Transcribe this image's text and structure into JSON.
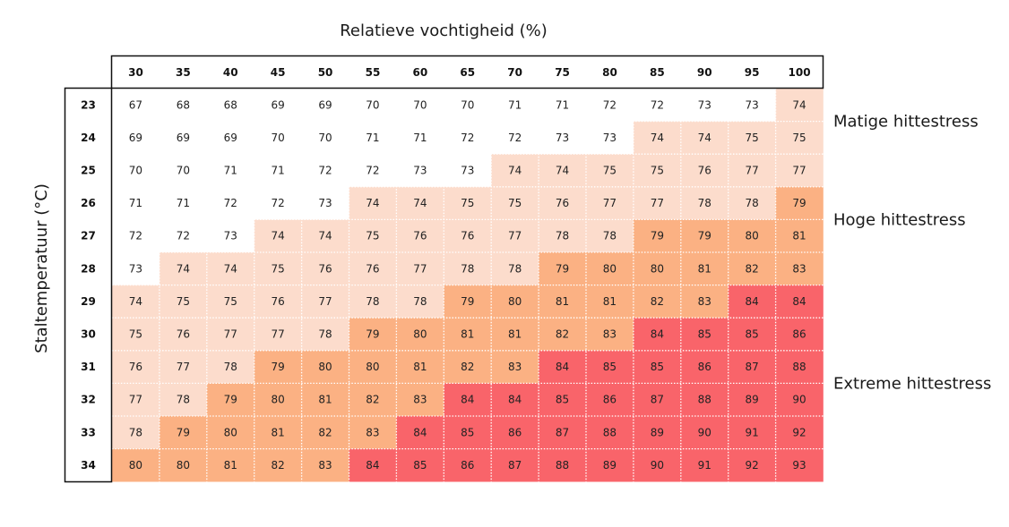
{
  "chart_data": {
    "type": "heatmap",
    "title": "",
    "xlabel": "Relatieve vochtigheid (%)",
    "ylabel": "Staltemperatuur (°C)",
    "x": [
      "30",
      "35",
      "40",
      "45",
      "50",
      "55",
      "60",
      "65",
      "70",
      "75",
      "80",
      "85",
      "90",
      "95",
      "100"
    ],
    "y": [
      "23",
      "24",
      "25",
      "26",
      "27",
      "28",
      "29",
      "30",
      "31",
      "32",
      "33",
      "34"
    ],
    "values": [
      [
        67,
        68,
        68,
        69,
        69,
        70,
        70,
        70,
        71,
        71,
        72,
        72,
        73,
        73,
        74
      ],
      [
        69,
        69,
        69,
        70,
        70,
        71,
        71,
        72,
        72,
        73,
        73,
        74,
        74,
        75,
        75
      ],
      [
        70,
        70,
        71,
        71,
        72,
        72,
        73,
        73,
        74,
        74,
        75,
        75,
        76,
        77,
        77
      ],
      [
        71,
        71,
        72,
        72,
        73,
        74,
        74,
        75,
        75,
        76,
        77,
        77,
        78,
        78,
        79
      ],
      [
        72,
        72,
        73,
        74,
        74,
        75,
        76,
        76,
        77,
        78,
        78,
        79,
        79,
        80,
        81
      ],
      [
        73,
        74,
        74,
        75,
        76,
        76,
        77,
        78,
        78,
        79,
        80,
        80,
        81,
        82,
        83
      ],
      [
        74,
        75,
        75,
        76,
        77,
        78,
        78,
        79,
        80,
        81,
        81,
        82,
        83,
        84,
        84
      ],
      [
        75,
        76,
        77,
        77,
        78,
        79,
        80,
        81,
        81,
        82,
        83,
        84,
        85,
        85,
        86
      ],
      [
        76,
        77,
        78,
        79,
        80,
        80,
        81,
        82,
        83,
        84,
        85,
        85,
        86,
        87,
        88
      ],
      [
        77,
        78,
        79,
        80,
        81,
        82,
        83,
        84,
        84,
        85,
        86,
        87,
        88,
        89,
        90
      ],
      [
        78,
        79,
        80,
        81,
        82,
        83,
        84,
        85,
        86,
        87,
        88,
        89,
        90,
        91,
        92
      ],
      [
        80,
        80,
        81,
        82,
        83,
        84,
        85,
        86,
        87,
        88,
        89,
        90,
        91,
        92,
        93
      ]
    ],
    "bands": [
      {
        "label": "Matige hittestress",
        "min": 74,
        "max": 78,
        "color": "#fcdccc"
      },
      {
        "label": "Hoge hittestress",
        "min": 79,
        "max": 83,
        "color": "#fbb183"
      },
      {
        "label": "Extreme hittestress",
        "min": 84,
        "max": 99,
        "color": "#f9646a"
      }
    ],
    "base_color": "#ffffff"
  }
}
